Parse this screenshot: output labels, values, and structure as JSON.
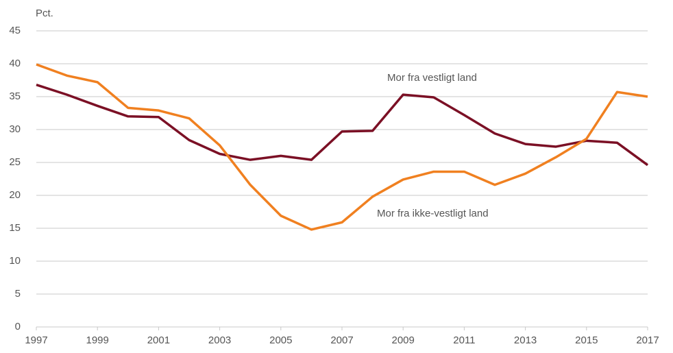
{
  "chart_data": {
    "type": "line",
    "y_label": "Pct.",
    "x": [
      1997,
      1998,
      1999,
      2000,
      2001,
      2002,
      2003,
      2004,
      2005,
      2006,
      2007,
      2008,
      2009,
      2010,
      2011,
      2012,
      2013,
      2014,
      2015,
      2016,
      2017
    ],
    "series": [
      {
        "name": "Mor fra vestligt land",
        "color": "#7b1025",
        "values": [
          36.8,
          35.3,
          33.6,
          32.0,
          31.9,
          28.4,
          26.3,
          25.4,
          26.0,
          25.4,
          29.7,
          29.8,
          35.3,
          34.9,
          32.2,
          29.4,
          27.8,
          27.4,
          28.3,
          28.0,
          24.6
        ]
      },
      {
        "name": "Mor fra ikke-vestligt land",
        "color": "#f08020",
        "values": [
          39.9,
          38.2,
          37.2,
          33.3,
          32.9,
          31.7,
          27.6,
          21.6,
          16.9,
          14.8,
          15.9,
          19.8,
          22.4,
          23.6,
          23.6,
          21.6,
          23.3,
          25.8,
          28.6,
          35.7,
          35.0
        ]
      }
    ],
    "xlim": [
      1997,
      2017
    ],
    "xticks": [
      1997,
      1999,
      2001,
      2003,
      2005,
      2007,
      2009,
      2011,
      2013,
      2015,
      2017
    ],
    "ylim": [
      0,
      45
    ],
    "yticks": [
      0,
      5,
      10,
      15,
      20,
      25,
      30,
      35,
      40,
      45
    ],
    "grid": true
  }
}
